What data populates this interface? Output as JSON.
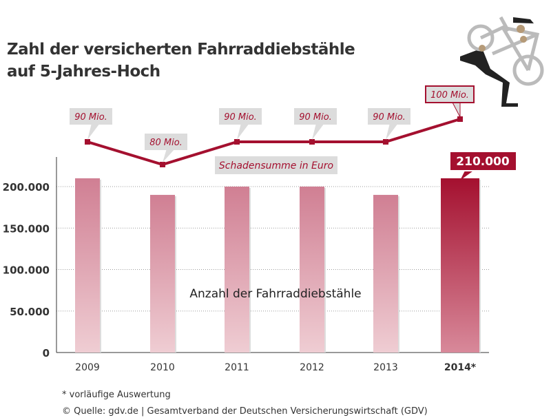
{
  "title_line1": "Zahl der versicherten Fahrraddiebstähle",
  "title_line2": "auf 5-Jahres-Hoch",
  "footnote": "* vorläufige Auswertung",
  "source": "© Quelle: gdv.de | Gesamtverband der Deutschen Versicherungswirtschaft (GDV)",
  "colors": {
    "bar": "#d4899a",
    "bar_highlight": "#a4102f",
    "line": "#a4102f",
    "label_bg": "#dcdcdc"
  },
  "chart_data": {
    "type": "bar",
    "categories": [
      "2009",
      "2010",
      "2011",
      "2012",
      "2013",
      "2014*"
    ],
    "ylim": [
      0,
      200000
    ],
    "yticks": [
      0,
      50000,
      100000,
      150000,
      200000
    ],
    "ytick_labels": [
      "0",
      "50.000",
      "100.000",
      "150.000",
      "200.000"
    ],
    "grid": true,
    "series": [
      {
        "name": "Anzahl der Fahrraddiebstähle",
        "type": "bar",
        "values": [
          210000,
          190000,
          200000,
          200000,
          190000,
          210000
        ],
        "highlight_label": "210.000"
      },
      {
        "name": "Schadensumme in Euro",
        "type": "line",
        "unit": "Mio.",
        "values": [
          90,
          80,
          90,
          90,
          90,
          100
        ],
        "labels": [
          "90 Mio.",
          "80 Mio.",
          "90 Mio.",
          "90 Mio.",
          "90 Mio.",
          "100 Mio."
        ]
      }
    ]
  }
}
